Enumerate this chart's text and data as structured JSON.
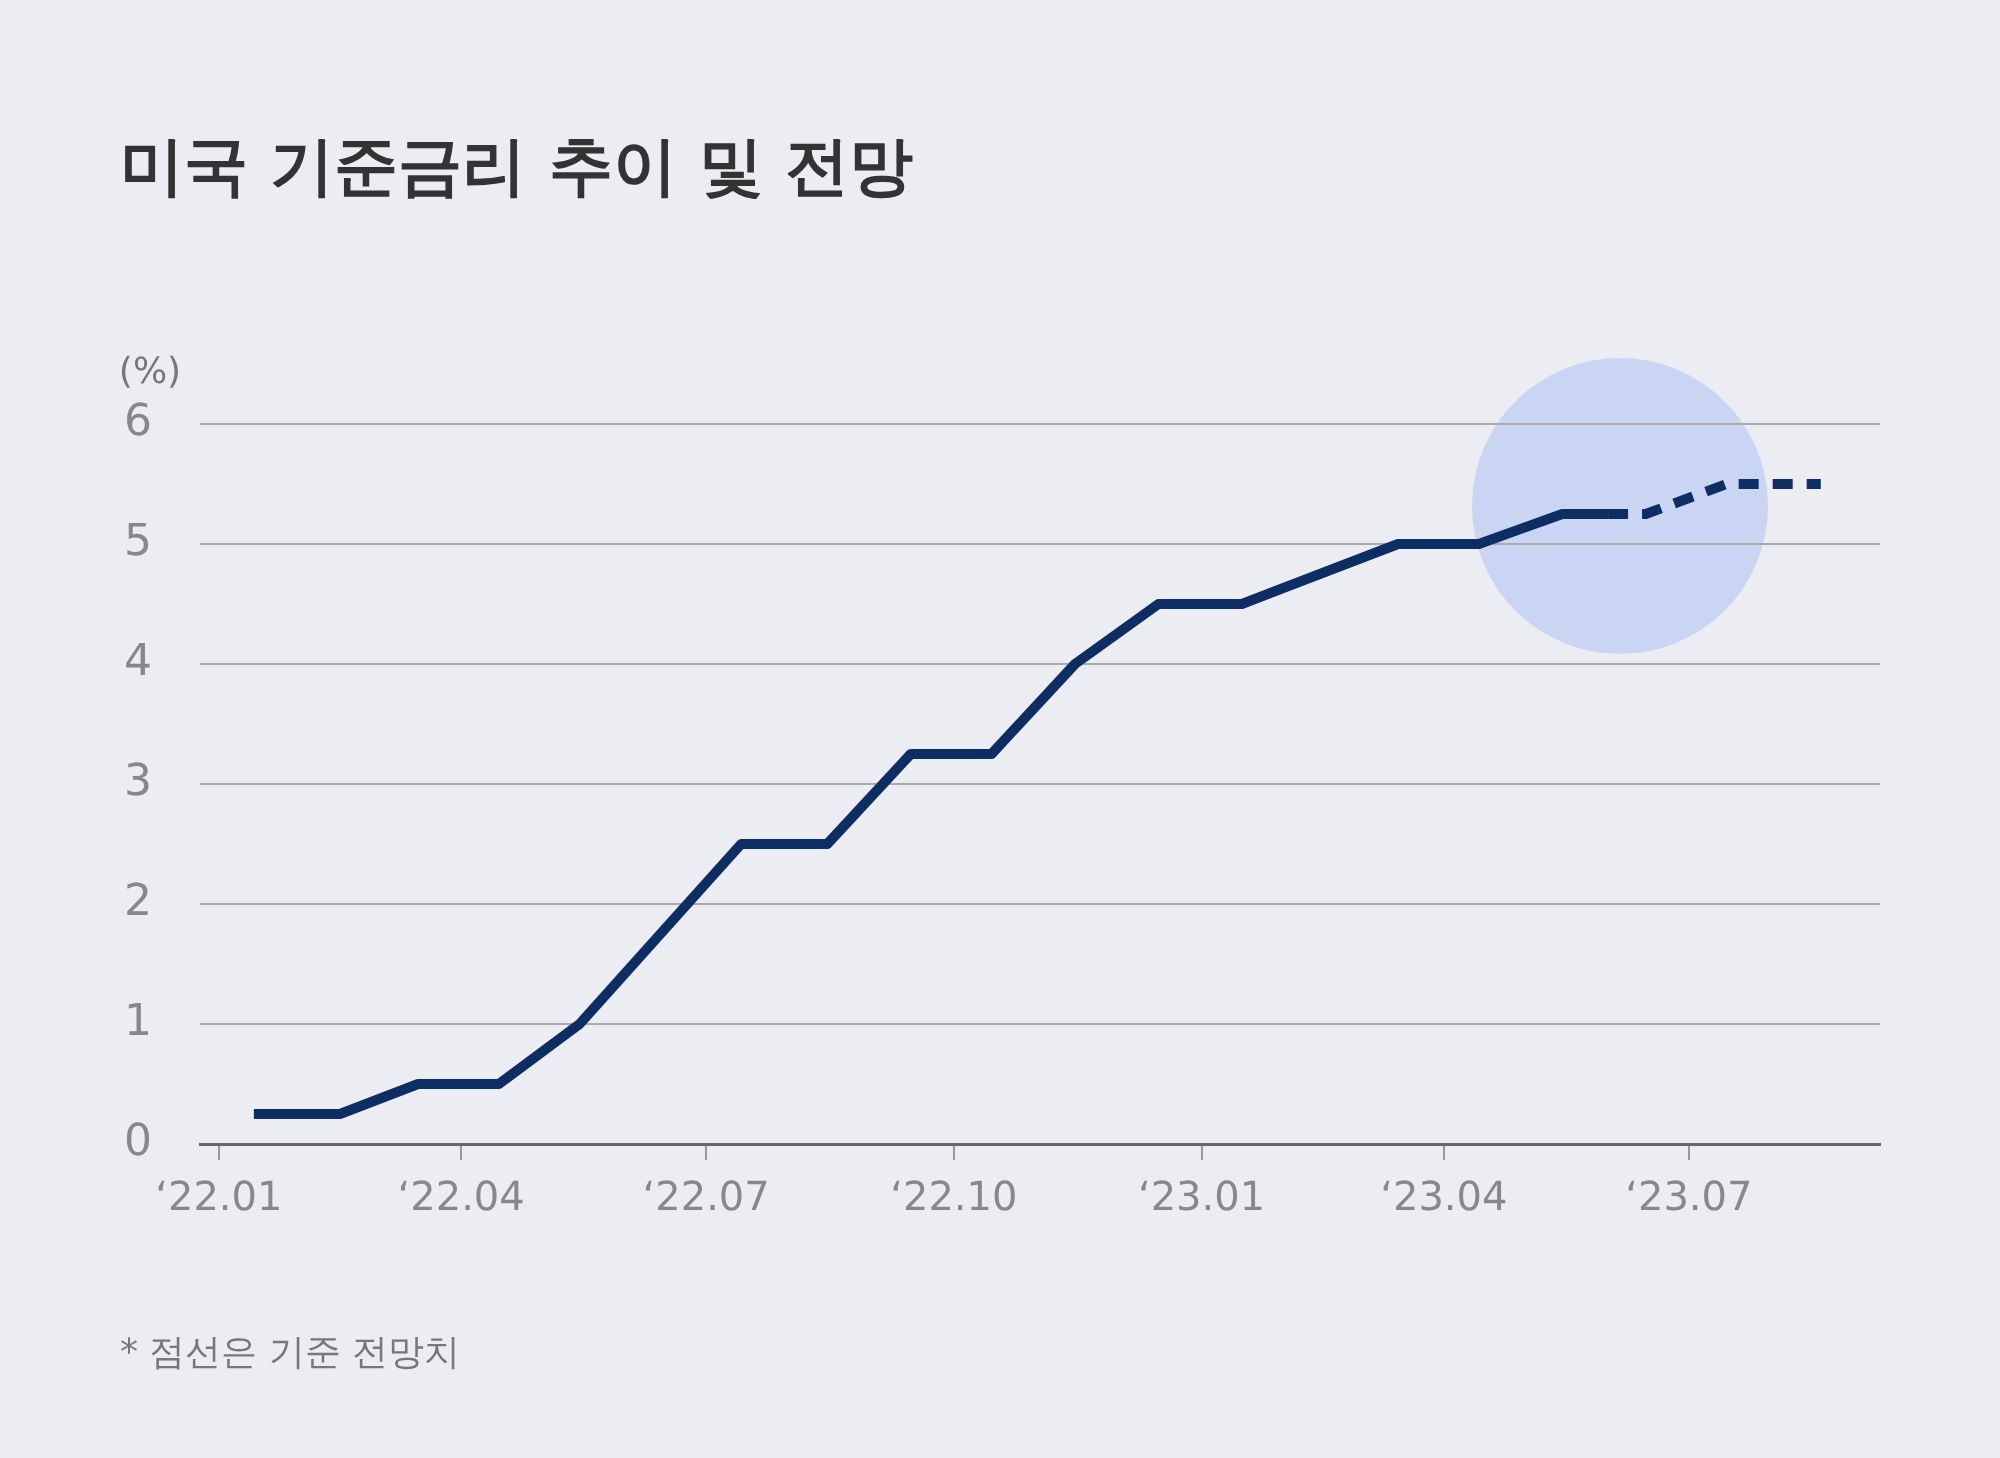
{
  "chart_data": {
    "type": "line",
    "title": "미국 기준금리 추이 및 전망",
    "ylabel": "(%)",
    "annotations": [
      "*  점선은 기준 전망치"
    ],
    "series": [
      {
        "color": "#0e2e63",
        "line_style": "solid",
        "x": [
          "2022-01-14",
          "2022-02-15",
          "2022-03-16",
          "2022-04-15",
          "2022-05-15",
          "2022-07-14",
          "2022-08-15",
          "2022-09-15",
          "2022-10-15",
          "2022-11-15",
          "2022-12-16",
          "2023-01-16",
          "2023-03-15",
          "2023-04-14",
          "2023-05-15",
          "2023-06-01"
        ],
        "values": [
          0.25,
          0.25,
          0.5,
          0.5,
          1.0,
          2.5,
          2.5,
          3.25,
          3.25,
          4.0,
          4.5,
          4.5,
          5.0,
          5.0,
          5.25,
          5.25
        ]
      },
      {
        "color": "#0e2e63",
        "line_style": "dashed",
        "x": [
          "2023-06-01",
          "2023-06-15",
          "2023-07-15",
          "2023-08-19"
        ],
        "values": [
          5.25,
          5.25,
          5.5,
          5.5
        ]
      }
    ],
    "xlim": [
      "2021-12-25",
      "2023-09-10"
    ],
    "xticks": [
      {
        "value": "2022-01",
        "label": "‘22.01"
      },
      {
        "value": "2022-04",
        "label": "‘22.04"
      },
      {
        "value": "2022-07",
        "label": "‘22.07"
      },
      {
        "value": "2022-10",
        "label": "‘22.10"
      },
      {
        "value": "2023-01",
        "label": "‘23.01"
      },
      {
        "value": "2023-04",
        "label": "‘23.04"
      },
      {
        "value": "2023-07",
        "label": "‘23.07"
      }
    ],
    "ylim": [
      0,
      6
    ],
    "yticks": [
      0,
      1,
      2,
      3,
      4,
      5,
      6
    ],
    "grid": "y",
    "legend": false,
    "marker": "none"
  }
}
